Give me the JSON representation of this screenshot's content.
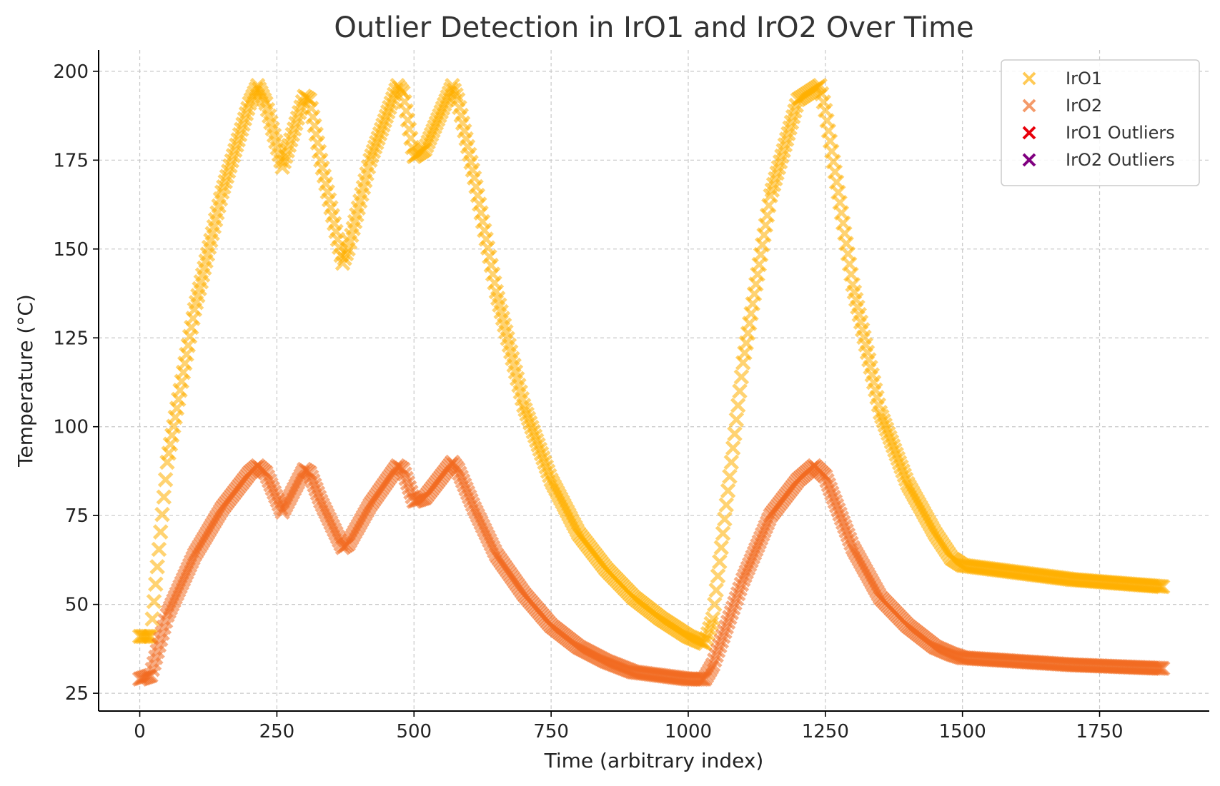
{
  "chart_data": {
    "type": "scatter",
    "title": "Outlier Detection in IrO1 and IrO2 Over Time",
    "xlabel": "Time (arbitrary index)",
    "ylabel": "Temperature (°C)",
    "xlim": [
      -75,
      1950
    ],
    "ylim": [
      20,
      206
    ],
    "xticks": [
      0,
      250,
      500,
      750,
      1000,
      1250,
      1500,
      1750
    ],
    "yticks": [
      25,
      50,
      75,
      100,
      125,
      150,
      175,
      200
    ],
    "xtick_labels": [
      "0",
      "250",
      "500",
      "750",
      "1000",
      "1250",
      "1500",
      "1750"
    ],
    "ytick_labels": [
      "25",
      "50",
      "75",
      "100",
      "125",
      "150",
      "175",
      "200"
    ],
    "grid": true,
    "legend_position": "top-right",
    "marker": "x",
    "series": [
      {
        "name": "IrO1",
        "color": "#FFB000",
        "x": [
          0,
          20,
          50,
          100,
          150,
          200,
          215,
          230,
          260,
          300,
          310,
          330,
          370,
          380,
          420,
          470,
          480,
          500,
          520,
          570,
          580,
          610,
          650,
          700,
          750,
          800,
          850,
          900,
          950,
          1000,
          1030,
          1045,
          1100,
          1150,
          1200,
          1240,
          1250,
          1300,
          1350,
          1400,
          1450,
          1480,
          1500,
          1600,
          1700,
          1865
        ],
        "y": [
          41,
          41,
          90,
          133,
          166,
          191,
          196,
          191,
          173,
          193,
          192,
          175,
          146,
          150,
          175,
          196,
          194,
          176,
          178,
          196,
          192,
          170,
          138,
          106,
          85,
          70,
          60,
          52,
          46,
          41,
          39,
          46,
          118,
          165,
          192,
          196,
          189,
          140,
          104,
          84,
          70,
          63,
          61,
          59,
          57,
          55
        ]
      },
      {
        "name": "IrO2",
        "color": "#F26B21",
        "x": [
          0,
          20,
          50,
          100,
          150,
          200,
          215,
          230,
          260,
          300,
          310,
          330,
          370,
          380,
          420,
          470,
          480,
          500,
          520,
          570,
          580,
          610,
          650,
          700,
          750,
          800,
          850,
          900,
          950,
          1000,
          1030,
          1045,
          1100,
          1150,
          1200,
          1230,
          1250,
          1300,
          1350,
          1400,
          1450,
          1480,
          1500,
          1600,
          1700,
          1865
        ],
        "y": [
          29,
          30,
          47,
          64,
          77,
          87,
          89,
          87,
          76,
          88,
          87,
          79,
          66,
          67,
          78,
          89,
          88,
          79,
          80,
          90,
          88,
          77,
          64,
          53,
          44,
          38,
          34,
          31,
          30,
          29,
          29,
          33,
          57,
          75,
          85,
          89,
          86,
          66,
          52,
          44,
          38,
          36,
          35,
          34,
          33,
          32
        ]
      },
      {
        "name": "IrO1 Outliers",
        "color": "#E8000B",
        "x": [],
        "y": []
      },
      {
        "name": "IrO2 Outliers",
        "color": "#800080",
        "x": [],
        "y": []
      }
    ]
  }
}
